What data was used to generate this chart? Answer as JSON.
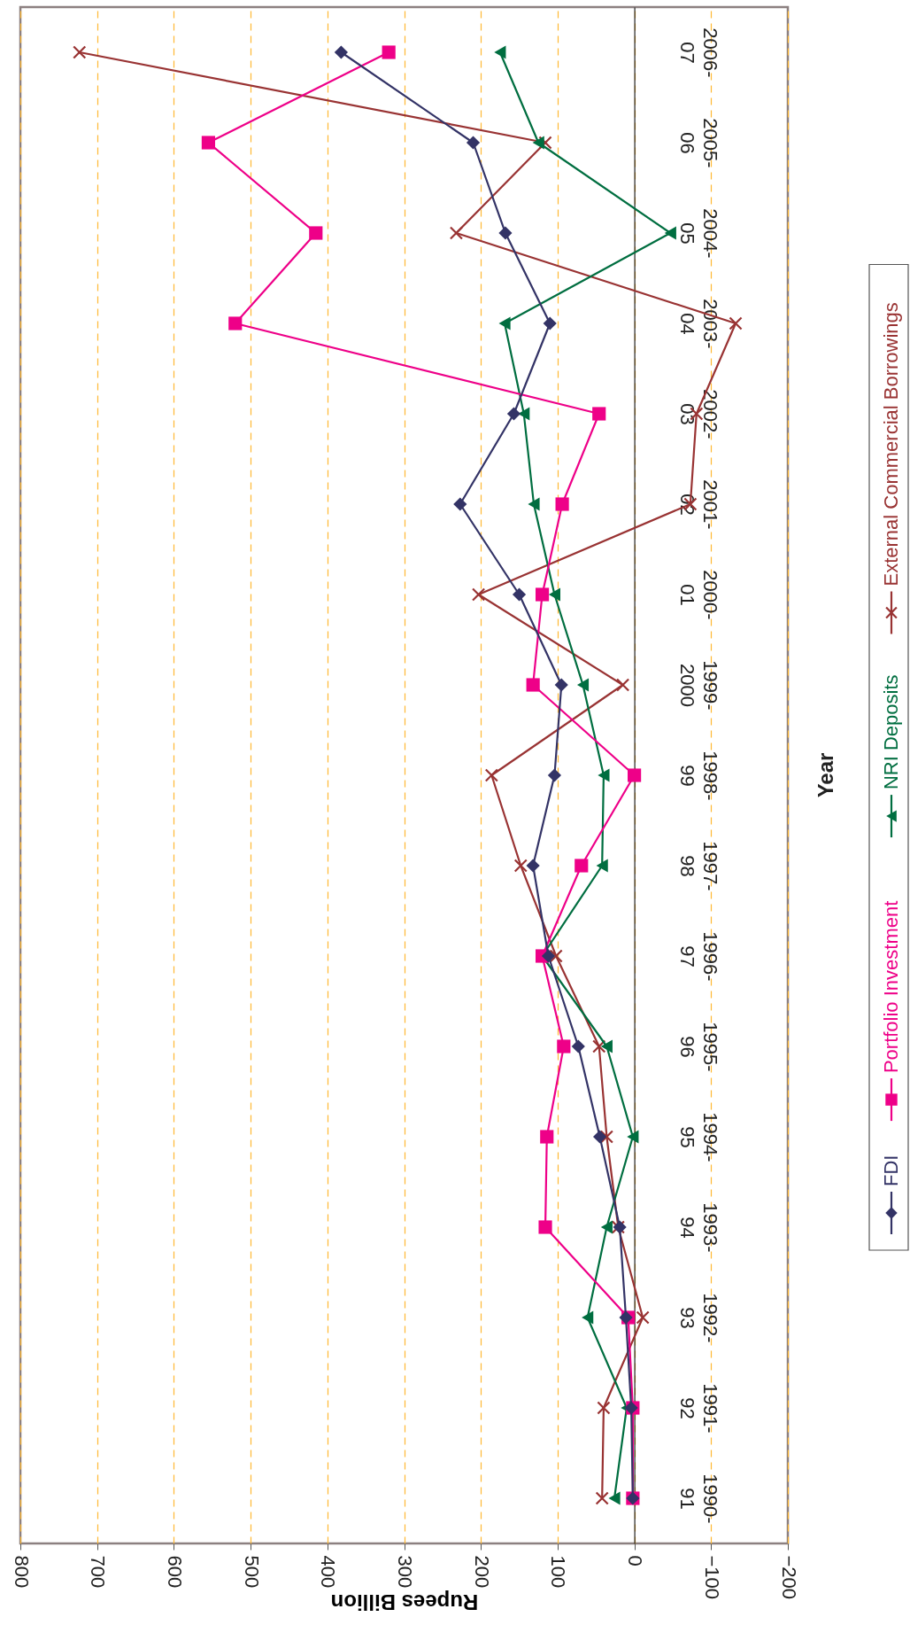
{
  "chart_data": {
    "type": "line",
    "orientation": "horizontal",
    "xlabel": "Rupees Billion",
    "ylabel": "Year",
    "categories": [
      "2006-07",
      "2005-06",
      "2004-05",
      "2003-04",
      "2002-03",
      "2001-02",
      "2000-01",
      "1999-2000",
      "1998-99",
      "1997-98",
      "1996-97",
      "1995-96",
      "1994-95",
      "1993-94",
      "1992-93",
      "1991-92",
      "1990-91"
    ],
    "series": [
      {
        "name": "FDI",
        "color": "#333366",
        "marker": "diamond",
        "values": [
          382,
          210,
          168,
          110,
          157,
          227,
          150,
          95,
          104,
          132,
          112,
          73,
          45,
          19,
          11,
          4,
          2
        ]
      },
      {
        "name": "Portfolio Investment",
        "color": "#ee0088",
        "marker": "square",
        "values": [
          320,
          555,
          415,
          520,
          46,
          94,
          120,
          132,
          0,
          69,
          120,
          92,
          114,
          116,
          8,
          2,
          2
        ]
      },
      {
        "name": "NRI Deposits",
        "color": "#006e40",
        "marker": "triangle",
        "values": [
          175,
          125,
          -47,
          169,
          144,
          131,
          104,
          67,
          40,
          42,
          120,
          36,
          2,
          36,
          61,
          10,
          26
        ]
      },
      {
        "name": "External Commercial Borrowings",
        "color": "#993333",
        "marker": "cross",
        "values": [
          723,
          116,
          232,
          -132,
          -81,
          -73,
          203,
          15,
          186,
          148,
          102,
          46,
          36,
          21,
          -11,
          40,
          42
        ]
      }
    ],
    "xlim": [
      800,
      -200
    ],
    "xticks": [
      800,
      700,
      600,
      500,
      400,
      300,
      200,
      100,
      0,
      -100,
      -200
    ],
    "grid": "x",
    "legend": "right"
  }
}
